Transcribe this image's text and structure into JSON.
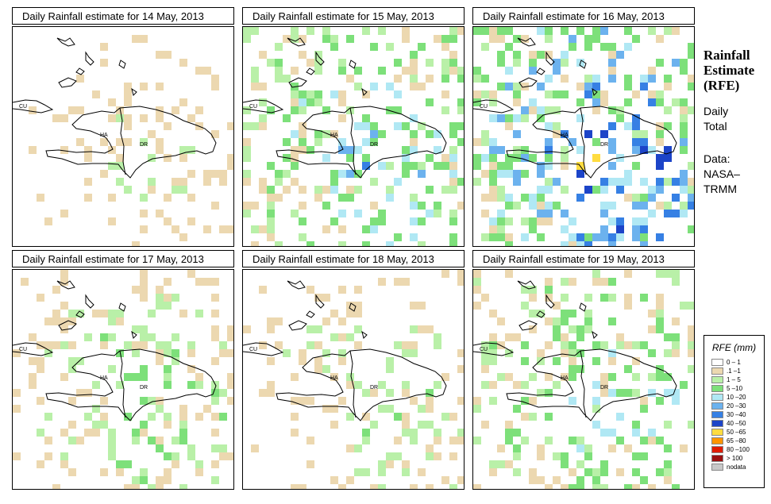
{
  "panels": [
    {
      "title": "Daily Rainfall estimate for  14 May, 2013",
      "seed": 11,
      "intensity": 0.6
    },
    {
      "title": "Daily Rainfall estimate for  15 May, 2013",
      "seed": 23,
      "intensity": 1.6
    },
    {
      "title": "Daily Rainfall estimate for  16 May, 2013",
      "seed": 37,
      "intensity": 2.6
    },
    {
      "title": "Daily Rainfall estimate for  17 May, 2013",
      "seed": 41,
      "intensity": 0.9
    },
    {
      "title": "Daily Rainfall estimate for  18 May, 2013",
      "seed": 53,
      "intensity": 0.8
    },
    {
      "title": "Daily Rainfall estimate for  19 May, 2013",
      "seed": 67,
      "intensity": 1.3
    }
  ],
  "map_labels": {
    "cuba": "CU",
    "haiti": "HA",
    "dominican_republic": "DR"
  },
  "sidebar": {
    "title_line1": "Rainfall",
    "title_line2": "Estimate",
    "title_line3": "(RFE)",
    "daily": "Daily",
    "total": "Total",
    "data_label": "Data:",
    "source_line1": "NASA–",
    "source_line2": "TRMM"
  },
  "legend": {
    "title": "RFE (mm)",
    "items": [
      {
        "label": "0 – 1",
        "color": "#ffffff"
      },
      {
        "label": ".1 –1",
        "color": "#ecd8b0"
      },
      {
        "label": "1 – 5",
        "color": "#b9f0a8"
      },
      {
        "label": "5 –10",
        "color": "#7de07a"
      },
      {
        "label": "10 –20",
        "color": "#b0e8f4"
      },
      {
        "label": "20 –30",
        "color": "#6cb2ee"
      },
      {
        "label": "30 –40",
        "color": "#3680e4"
      },
      {
        "label": "40 –50",
        "color": "#1c44c8"
      },
      {
        "label": "50 –65",
        "color": "#ffdc40"
      },
      {
        "label": "65 –80",
        "color": "#ff9600"
      },
      {
        "label": "80 –100",
        "color": "#e01c00"
      },
      {
        "label": "> 100",
        "color": "#9a1010"
      },
      {
        "label": "nodata",
        "color": "#c8c8c8"
      }
    ]
  }
}
